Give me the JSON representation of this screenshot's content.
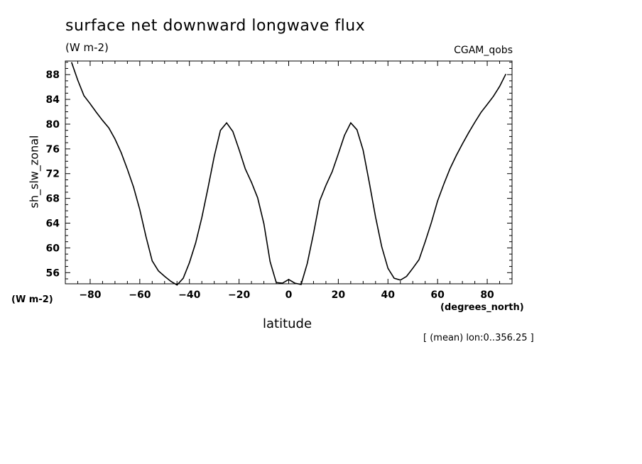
{
  "chart_data": {
    "type": "line",
    "title": "surface net downward longwave flux",
    "units": "(W m-2)",
    "dataset": "CGAM_qobs",
    "ylabel": "sh_slw_zonal",
    "yunits": "(W m-2)",
    "xlabel": "latitude",
    "xunits": "(degrees_north)",
    "note": "[ (mean) lon:0..356.25 ]",
    "xlim": [
      -90,
      90
    ],
    "ylim": [
      54.2,
      90.2
    ],
    "xticks": [
      -80,
      -60,
      -40,
      -20,
      0,
      20,
      40,
      60,
      80
    ],
    "yticks": [
      56,
      60,
      64,
      68,
      72,
      76,
      80,
      84,
      88
    ],
    "grid": false,
    "series": [
      {
        "x": [
          -87.5,
          -85,
          -82.5,
          -80,
          -77.5,
          -75,
          -72.5,
          -70,
          -67.5,
          -65,
          -62.5,
          -60,
          -57.5,
          -55,
          -52.5,
          -50,
          -47.5,
          -45,
          -42.5,
          -40,
          -37.5,
          -35,
          -32.5,
          -30,
          -27.5,
          -25,
          -22.5,
          -20,
          -17.5,
          -15,
          -12.5,
          -10,
          -7.5,
          -5,
          -2.5,
          0,
          2.5,
          5,
          7.5,
          10,
          12.5,
          15,
          17.5,
          20,
          22.5,
          25,
          27.5,
          30,
          32.5,
          35,
          37.5,
          40,
          42.5,
          45,
          47.5,
          50,
          52.5,
          55,
          57.5,
          60,
          62.5,
          65,
          67.5,
          70,
          72.5,
          75,
          77.5,
          80,
          82.5,
          85,
          87.5
        ],
        "values": [
          90.0,
          87.1,
          84.6,
          83.3,
          81.9,
          80.6,
          79.4,
          77.6,
          75.4,
          72.7,
          69.8,
          66.2,
          61.8,
          57.9,
          56.3,
          55.4,
          54.6,
          54.0,
          55.1,
          57.6,
          60.8,
          64.9,
          69.7,
          74.8,
          79.0,
          80.2,
          78.8,
          75.9,
          72.8,
          70.6,
          68.1,
          63.9,
          57.8,
          54.4,
          54.3,
          54.9,
          54.3,
          54.1,
          57.5,
          62.3,
          67.6,
          70.1,
          72.3,
          75.2,
          78.2,
          80.2,
          79.1,
          75.8,
          70.5,
          65.0,
          60.2,
          56.7,
          55.1,
          54.8,
          55.4,
          56.7,
          58.1,
          61.0,
          64.1,
          67.6,
          70.3,
          72.8,
          74.9,
          76.8,
          78.6,
          80.3,
          81.9,
          83.2,
          84.5,
          86.1,
          88.1
        ]
      }
    ]
  }
}
